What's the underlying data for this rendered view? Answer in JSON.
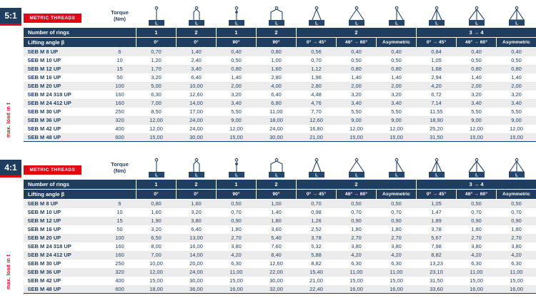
{
  "accent": {
    "navy": "#1e3d5f",
    "red": "#e30613",
    "row_alt": "#ececec"
  },
  "labels": {
    "metric_threads": "METRIC THREADS",
    "torque": "Torque (Nm)",
    "number_of_rings": "Number of rings",
    "lifting_angle": "Lifting angle β",
    "max_load": "max. load in t",
    "load_letter": "L"
  },
  "columns": {
    "rings": [
      {
        "label": "1",
        "span": 1
      },
      {
        "label": "2",
        "span": 1
      },
      {
        "label": "1",
        "span": 1
      },
      {
        "label": "2",
        "span": 1
      },
      {
        "label": "2",
        "span": 3
      },
      {
        "label": "3 → 4",
        "span": 3
      }
    ],
    "angles": [
      "0°",
      "0°",
      "90°",
      "90°",
      "0° → 45°",
      "46° → 60°",
      "Asymmetric",
      "0° → 45°",
      "46° → 60°",
      "Asymmetric"
    ],
    "icons": [
      "single-vertical",
      "double-vertical",
      "single-90",
      "double-90",
      "two-leg-0-45",
      "two-leg-46-60",
      "two-leg-asymmetric",
      "multi-leg-0-45",
      "multi-leg-46-60",
      "multi-leg-asymmetric"
    ]
  },
  "tables": [
    {
      "ratio": "5:1",
      "rows": [
        {
          "name": "SEB M 8 UP",
          "torque": "6",
          "values": [
            "0,70",
            "1,40",
            "0,40",
            "0,80",
            "0,56",
            "0,40",
            "0,40",
            "0,84",
            "0,40",
            "0,40"
          ]
        },
        {
          "name": "SEB M 10 UP",
          "torque": "10",
          "values": [
            "1,20",
            "2,40",
            "0,50",
            "1,00",
            "0,70",
            "0,50",
            "0,50",
            "1,05",
            "0,50",
            "0,50"
          ]
        },
        {
          "name": "SEB M 12 UP",
          "torque": "15",
          "values": [
            "1,70",
            "3,40",
            "0,80",
            "1,60",
            "1,12",
            "0,80",
            "0,80",
            "1,68",
            "0,80",
            "0,80"
          ]
        },
        {
          "name": "SEB M 16 UP",
          "torque": "50",
          "values": [
            "3,20",
            "6,40",
            "1,40",
            "2,80",
            "1,96",
            "1,40",
            "1,40",
            "2,94",
            "1,40",
            "1,40"
          ]
        },
        {
          "name": "SEB M 20 UP",
          "torque": "100",
          "values": [
            "5,00",
            "10,00",
            "2,00",
            "4,00",
            "2,80",
            "2,00",
            "2,00",
            "4,20",
            "2,00",
            "2,00"
          ]
        },
        {
          "name": "SEB M 24 318 UP",
          "torque": "160",
          "values": [
            "6,30",
            "12,60",
            "3,20",
            "6,40",
            "4,48",
            "3,20",
            "3,20",
            "6,72",
            "3,20",
            "3,20"
          ]
        },
        {
          "name": "SEB M 24 412 UP",
          "torque": "160",
          "values": [
            "7,00",
            "14,00",
            "3,40",
            "6,80",
            "4,76",
            "3,40",
            "3,40",
            "7,14",
            "3,40",
            "3,40"
          ]
        },
        {
          "name": "SEB M 30 UP",
          "torque": "250",
          "values": [
            "8,50",
            "17,00",
            "5,50",
            "11,00",
            "7,70",
            "5,50",
            "5,50",
            "11,55",
            "5,50",
            "5,50"
          ]
        },
        {
          "name": "SEB M 36 UP",
          "torque": "320",
          "values": [
            "12,00",
            "24,00",
            "9,00",
            "18,00",
            "12,60",
            "9,00",
            "9,00",
            "18,90",
            "9,00",
            "9,00"
          ]
        },
        {
          "name": "SEB M 42 UP",
          "torque": "400",
          "values": [
            "12,00",
            "24,00",
            "12,00",
            "24,00",
            "16,80",
            "12,00",
            "12,00",
            "25,20",
            "12,00",
            "12,00"
          ]
        },
        {
          "name": "SEB M 48 UP",
          "torque": "600",
          "values": [
            "15,00",
            "30,00",
            "15,00",
            "30,00",
            "21,00",
            "15,00",
            "15,00",
            "31,50",
            "15,00",
            "15,00"
          ]
        }
      ]
    },
    {
      "ratio": "4:1",
      "rows": [
        {
          "name": "SEB M 8 UP",
          "torque": "6",
          "values": [
            "0,80",
            "1,60",
            "0,50",
            "1,00",
            "0,70",
            "0,50",
            "0,50",
            "1,05",
            "0,50",
            "0,50"
          ]
        },
        {
          "name": "SEB M 10 UP",
          "torque": "10",
          "values": [
            "1,60",
            "3,20",
            "0,70",
            "1,40",
            "0,98",
            "0,70",
            "0,70",
            "1,47",
            "0,70",
            "0,70"
          ]
        },
        {
          "name": "SEB M 12 UP",
          "torque": "15",
          "values": [
            "1,90",
            "3,80",
            "0,90",
            "1,80",
            "1,26",
            "0,90",
            "0,90",
            "1,89",
            "0,90",
            "0,90"
          ]
        },
        {
          "name": "SEB M 16 UP",
          "torque": "50",
          "values": [
            "3,20",
            "6,40",
            "1,80",
            "3,60",
            "2,52",
            "1,80",
            "1,80",
            "3,78",
            "1,80",
            "1,80"
          ]
        },
        {
          "name": "SEB M 20 UP",
          "torque": "100",
          "values": [
            "6,50",
            "13,00",
            "2,70",
            "5,40",
            "3,78",
            "2,70",
            "2,70",
            "5,67",
            "2,70",
            "2,70"
          ]
        },
        {
          "name": "SEB M 24 318 UP",
          "torque": "160",
          "values": [
            "8,00",
            "16,00",
            "3,80",
            "7,60",
            "5,32",
            "3,80",
            "3,80",
            "7,98",
            "3,80",
            "3,80"
          ]
        },
        {
          "name": "SEB M 24 412 UP",
          "torque": "160",
          "values": [
            "7,00",
            "14,00",
            "4,20",
            "8,40",
            "5,88",
            "4,20",
            "4,20",
            "8,82",
            "4,20",
            "4,20"
          ]
        },
        {
          "name": "SEB M 30 UP",
          "torque": "250",
          "values": [
            "10,00",
            "20,00",
            "6,30",
            "12,60",
            "8,82",
            "6,30",
            "6,30",
            "13,23",
            "6,30",
            "6,30"
          ]
        },
        {
          "name": "SEB M 36 UP",
          "torque": "320",
          "values": [
            "12,00",
            "24,00",
            "11,00",
            "22,00",
            "15,40",
            "11,00",
            "11,00",
            "23,10",
            "11,00",
            "11,00"
          ]
        },
        {
          "name": "SEB M 42 UP",
          "torque": "400",
          "values": [
            "15,00",
            "30,00",
            "15,00",
            "30,00",
            "21,00",
            "15,00",
            "15,00",
            "31,50",
            "15,00",
            "15,00"
          ]
        },
        {
          "name": "SEB M 48 UP",
          "torque": "600",
          "values": [
            "18,00",
            "36,00",
            "16,00",
            "32,00",
            "22,40",
            "16,00",
            "16,00",
            "33,60",
            "16,00",
            "16,00"
          ]
        }
      ]
    }
  ]
}
